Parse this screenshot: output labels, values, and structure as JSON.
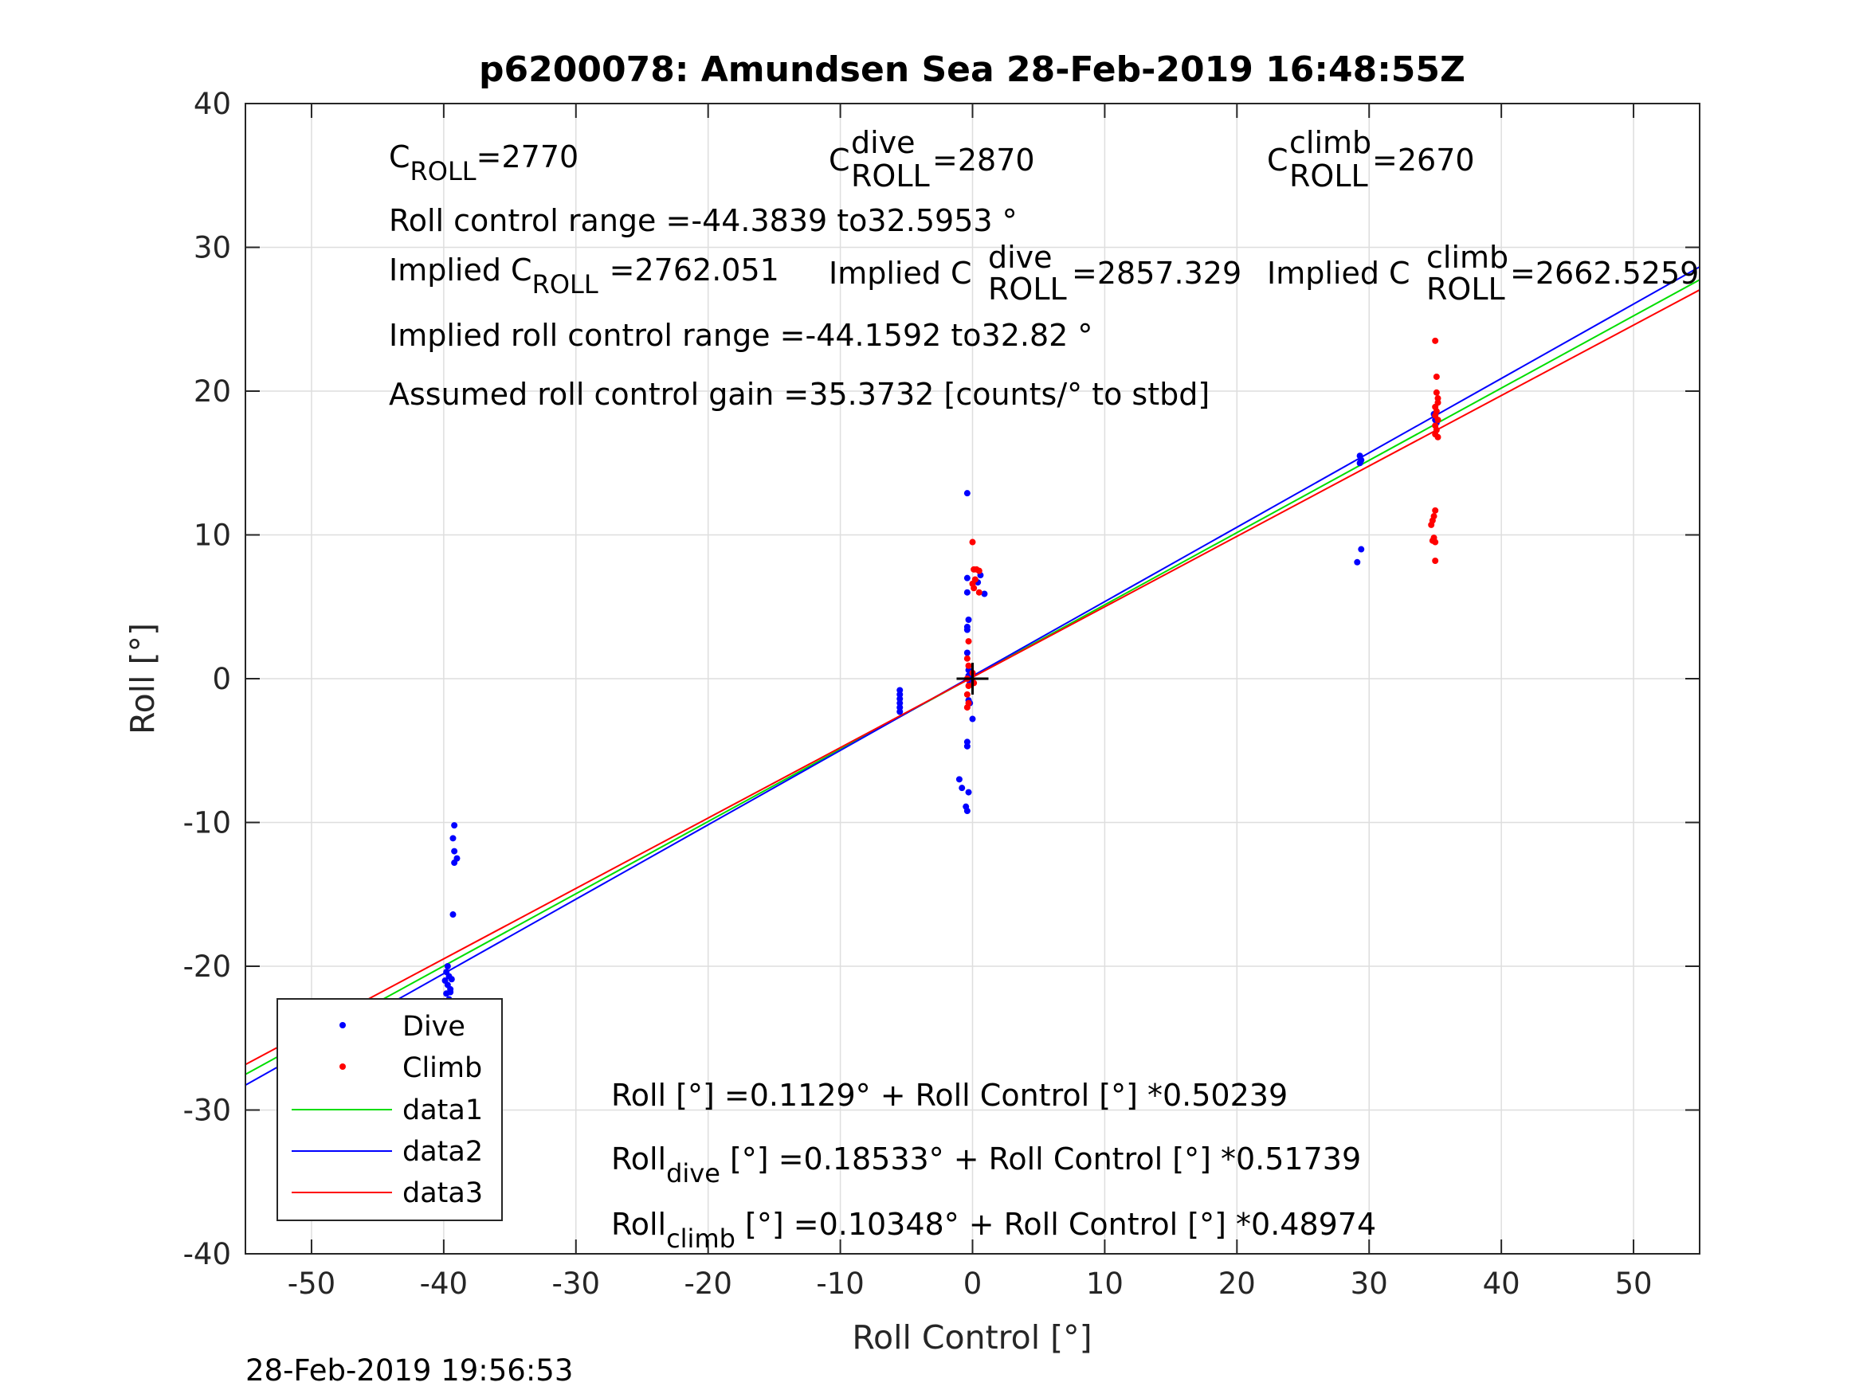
{
  "chart_data": {
    "type": "scatter",
    "title": "p6200078: Amundsen Sea 28-Feb-2019 16:48:55Z",
    "xlabel": "Roll Control [°]",
    "ylabel": "Roll [°]",
    "xlim": [
      -55,
      55
    ],
    "ylim": [
      -40,
      40
    ],
    "x_ticks": [
      -50,
      -40,
      -30,
      -20,
      -10,
      0,
      10,
      20,
      30,
      40,
      50
    ],
    "y_ticks": [
      -40,
      -30,
      -20,
      -10,
      0,
      10,
      20,
      30,
      40
    ],
    "x_tick_labels": [
      "-50",
      "-40",
      "-30",
      "-20",
      "-10",
      "0",
      "10",
      "20",
      "30",
      "40",
      "50"
    ],
    "y_tick_labels": [
      "-40",
      "-30",
      "-20",
      "-10",
      "0",
      "10",
      "20",
      "30",
      "40"
    ],
    "grid": true,
    "legend_position": "bottom-left",
    "colors": {
      "dive": "#0000ff",
      "climb": "#ff0000",
      "data1": "#00dd00",
      "data2": "#0000ff",
      "data3": "#ff0000"
    },
    "series": [
      {
        "name": "Dive",
        "kind": "points",
        "color": "#0000ff",
        "points": [
          [
            -47.5,
            -24.1
          ],
          [
            -39.7,
            -20.0
          ],
          [
            -39.8,
            -20.4
          ],
          [
            -39.6,
            -20.7
          ],
          [
            -39.9,
            -21.0
          ],
          [
            -39.7,
            -21.3
          ],
          [
            -39.5,
            -21.6
          ],
          [
            -39.8,
            -21.9
          ],
          [
            -39.6,
            -22.3
          ],
          [
            -39.7,
            -22.8
          ],
          [
            -39.8,
            -23.3
          ],
          [
            -39.6,
            -23.8
          ],
          [
            -39.7,
            -24.3
          ],
          [
            -39.8,
            -24.8
          ],
          [
            -39.4,
            -20.9
          ],
          [
            -39.5,
            -21.8
          ],
          [
            -39.2,
            -10.2
          ],
          [
            -39.3,
            -11.1
          ],
          [
            -39.2,
            -12.0
          ],
          [
            -39.0,
            -12.5
          ],
          [
            -39.2,
            -12.8
          ],
          [
            -39.3,
            -16.4
          ],
          [
            -5.5,
            -0.8
          ],
          [
            -5.5,
            -1.1
          ],
          [
            -5.5,
            -1.4
          ],
          [
            -5.5,
            -1.7
          ],
          [
            -5.5,
            -2.0
          ],
          [
            -5.5,
            -2.3
          ],
          [
            -0.4,
            12.9
          ],
          [
            -0.4,
            7.0
          ],
          [
            -0.4,
            6.0
          ],
          [
            -0.3,
            4.1
          ],
          [
            -0.4,
            3.6
          ],
          [
            -0.4,
            3.4
          ],
          [
            -0.4,
            1.8
          ],
          [
            -0.3,
            0.6
          ],
          [
            -0.3,
            0.2
          ],
          [
            -0.2,
            -0.3
          ],
          [
            -0.3,
            -1.5
          ],
          [
            -0.2,
            -1.7
          ],
          [
            0.0,
            -2.8
          ],
          [
            -0.4,
            -4.4
          ],
          [
            -0.4,
            -4.7
          ],
          [
            -1.0,
            -7.0
          ],
          [
            -0.8,
            -7.6
          ],
          [
            -0.3,
            -7.9
          ],
          [
            -0.5,
            -8.9
          ],
          [
            -0.4,
            -9.2
          ],
          [
            0.6,
            7.2
          ],
          [
            0.4,
            6.7
          ],
          [
            0.9,
            5.9
          ],
          [
            29.3,
            15.5
          ],
          [
            29.4,
            15.2
          ],
          [
            29.3,
            15.0
          ],
          [
            29.4,
            9.0
          ],
          [
            29.1,
            8.1
          ],
          [
            35.0,
            18.0
          ],
          [
            35.1,
            17.8
          ],
          [
            34.9,
            18.4
          ]
        ]
      },
      {
        "name": "Climb",
        "kind": "points",
        "color": "#ff0000",
        "points": [
          [
            0.0,
            9.5
          ],
          [
            0.1,
            7.6
          ],
          [
            0.3,
            7.6
          ],
          [
            0.5,
            7.5
          ],
          [
            0.2,
            6.9
          ],
          [
            0.0,
            6.6
          ],
          [
            0.1,
            6.3
          ],
          [
            0.5,
            6.0
          ],
          [
            -0.3,
            2.6
          ],
          [
            -0.4,
            1.4
          ],
          [
            -0.3,
            0.9
          ],
          [
            -0.4,
            0.0
          ],
          [
            -0.3,
            -0.5
          ],
          [
            -0.4,
            -1.1
          ],
          [
            -0.3,
            -1.7
          ],
          [
            -0.4,
            -2.0
          ],
          [
            0.0,
            0.4
          ],
          [
            0.1,
            -0.3
          ],
          [
            35.0,
            23.5
          ],
          [
            35.1,
            21.0
          ],
          [
            35.1,
            19.9
          ],
          [
            35.2,
            19.5
          ],
          [
            35.2,
            19.2
          ],
          [
            35.0,
            18.9
          ],
          [
            35.1,
            18.6
          ],
          [
            35.0,
            18.3
          ],
          [
            35.2,
            18.0
          ],
          [
            35.0,
            17.6
          ],
          [
            35.1,
            17.3
          ],
          [
            35.0,
            17.0
          ],
          [
            35.2,
            16.8
          ],
          [
            35.0,
            11.7
          ],
          [
            34.9,
            11.3
          ],
          [
            34.8,
            11.0
          ],
          [
            34.7,
            10.7
          ],
          [
            34.9,
            9.8
          ],
          [
            35.0,
            9.5
          ],
          [
            34.8,
            9.6
          ],
          [
            35.0,
            8.2
          ]
        ]
      },
      {
        "name": "data1",
        "kind": "line",
        "color": "#00dd00",
        "intercept": 0.1129,
        "slope": 0.50239
      },
      {
        "name": "data2",
        "kind": "line",
        "color": "#0000ff",
        "intercept": 0.18533,
        "slope": 0.51739
      },
      {
        "name": "data3",
        "kind": "line",
        "color": "#ff0000",
        "intercept": 0.10348,
        "slope": 0.48974
      }
    ],
    "marker": {
      "x": 0,
      "y": 0,
      "shape": "plus",
      "color": "#000000"
    },
    "annotations": {
      "c_roll": {
        "sym": "C",
        "sub": "ROLL",
        "value": "=2770"
      },
      "c_dive": {
        "sym": "C",
        "sup": "dive",
        "sub": "ROLL",
        "value": "=2870"
      },
      "c_climb": {
        "sym": "C",
        "sup": "climb",
        "sub": "ROLL",
        "value": "=2670"
      },
      "range": "Roll control range =-44.3839 to32.5953 °",
      "implied_roll": {
        "pre": "Implied C",
        "sub": "ROLL",
        "value": "=2762.051"
      },
      "implied_dive": {
        "pre": "Implied C",
        "sup": "dive",
        "sub": "ROLL",
        "value": "=2857.329"
      },
      "implied_climb": {
        "pre": "Implied C",
        "sup": "climb",
        "sub": "ROLL",
        "value": "=2662.5259"
      },
      "implied_range": "Implied roll control range =-44.1592 to32.82 °",
      "gain": "Assumed roll control gain =35.3732 [counts/° to stbd]",
      "fit_all": "Roll [°] =0.1129° + Roll Control [°] *0.50239",
      "fit_dive": {
        "pre": "Roll",
        "sub": "dive",
        "post": " [°] =0.18533° + Roll Control [°] *0.51739"
      },
      "fit_climb": {
        "pre": "Roll",
        "sub": "climb",
        "post": " [°] =0.10348° + Roll Control [°] *0.48974"
      }
    },
    "footer": "28-Feb-2019 19:56:53"
  }
}
